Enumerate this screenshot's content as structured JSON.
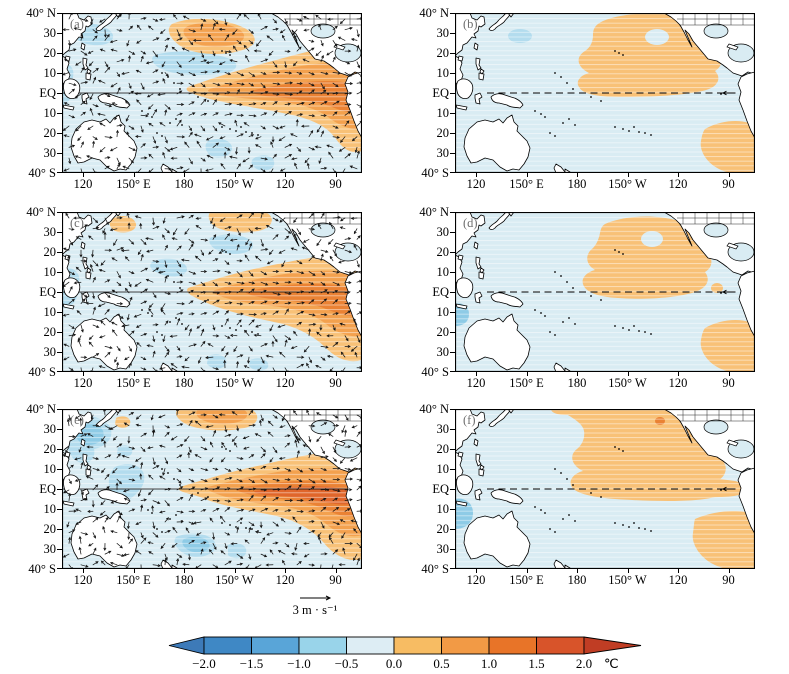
{
  "figure": {
    "panel_labels": [
      "(a)",
      "(b)",
      "(c)",
      "(d)",
      "(e)",
      "(f)"
    ]
  },
  "axes": {
    "y_ticks": [
      "40° N",
      "30",
      "20",
      "10",
      "EQ",
      "10",
      "20",
      "30",
      "40° S"
    ],
    "x_ticks": [
      "120",
      "150° E",
      "180",
      "150° W",
      "120",
      "90"
    ]
  },
  "panels": [
    {
      "label": "(a)",
      "row": 1,
      "col": 1,
      "content": "SST anomaly shading with wind anomaly vectors"
    },
    {
      "label": "(b)",
      "row": 1,
      "col": 2,
      "content": "SST anomaly shading, dashed equator line"
    },
    {
      "label": "(c)",
      "row": 2,
      "col": 1,
      "content": "SST anomaly shading with wind anomaly vectors"
    },
    {
      "label": "(d)",
      "row": 2,
      "col": 2,
      "content": "SST anomaly shading, dashed equator line"
    },
    {
      "label": "(e)",
      "row": 3,
      "col": 1,
      "content": "SST anomaly shading with wind anomaly vectors"
    },
    {
      "label": "(f)",
      "row": 3,
      "col": 2,
      "content": "SST anomaly shading, dashed equator line"
    }
  ],
  "vector_key": {
    "label": "3 m · s⁻¹",
    "value": 3,
    "unit": "m·s⁻¹"
  },
  "colorbar": {
    "tick_labels": [
      "−2.0",
      "−1.5",
      "−1.0",
      "−0.5",
      "0.0",
      "0.5",
      "1.0",
      "1.5",
      "2.0"
    ],
    "unit": "℃",
    "segment_colors": [
      "#3f88c5",
      "#59a5d8",
      "#99d4ea",
      "#ddedf4",
      "#f7bc63",
      "#f29a45",
      "#e87428",
      "#d8542a"
    ],
    "tip_left_color": "#3d7ab8",
    "tip_right_color": "#c03d24"
  },
  "palette": {
    "ocean": "#d9ecf3",
    "cool_light": "#b3dcee",
    "cool_mid": "#8ecbe6",
    "warm_1": "#f8c177",
    "warm_2": "#f3a14e",
    "warm_3": "#ea8234",
    "warm_4": "#e0662b",
    "warm_5": "#d14b24",
    "land": "#ffffff",
    "coast": "#000000"
  },
  "chart_data": {
    "type": "heatmap",
    "subtype": "pacific-sst-anomaly-composite-maps",
    "layout": "3 rows x 2 columns of maps",
    "panels": [
      {
        "id": "(a)",
        "variables": "SST anomaly shading + wind anomaly vectors",
        "pattern": "warm tongue along equatorial eastern Pacific, warm patch in NW Pacific ~150E 30-40N"
      },
      {
        "id": "(b)",
        "variables": "SST anomaly shading only",
        "pattern": "warm blob over NE subtropical Pacific reaching equator, warm SE corner, dashed equator line"
      },
      {
        "id": "(c)",
        "variables": "SST anomaly shading + wind anomaly vectors",
        "pattern": "warm tongue along equatorial eastern Pacific extending to SE"
      },
      {
        "id": "(d)",
        "variables": "SST anomaly shading only",
        "pattern": "warm blob central-NE Pacific touching equator with cool hole, warm SE corner, dashed equator line"
      },
      {
        "id": "(e)",
        "variables": "SST anomaly shading + wind anomaly vectors",
        "pattern": "strongest equatorial warm tongue, cool western/southern patches"
      },
      {
        "id": "(f)",
        "variables": "SST anomaly shading only",
        "pattern": "broad warm region NE Pacific to equator reaching South American coast, warm SE corner, dashed equator line"
      }
    ],
    "x_axis": {
      "tick_labels": [
        "120",
        "150°E",
        "180",
        "150°W",
        "120",
        "90"
      ],
      "approx_range_deg_east": [
        108,
        289
      ]
    },
    "y_axis": {
      "tick_labels": [
        "40°N",
        "30",
        "20",
        "10",
        "EQ",
        "10",
        "20",
        "30",
        "40°S"
      ],
      "range_deg_north": [
        -40,
        40
      ]
    },
    "color_scale": {
      "ticks": [
        -2.0,
        -1.5,
        -1.0,
        -0.5,
        0.0,
        0.5,
        1.0,
        1.5,
        2.0
      ],
      "unit": "°C"
    },
    "vector_reference": {
      "value": 3,
      "unit": "m/s"
    }
  }
}
